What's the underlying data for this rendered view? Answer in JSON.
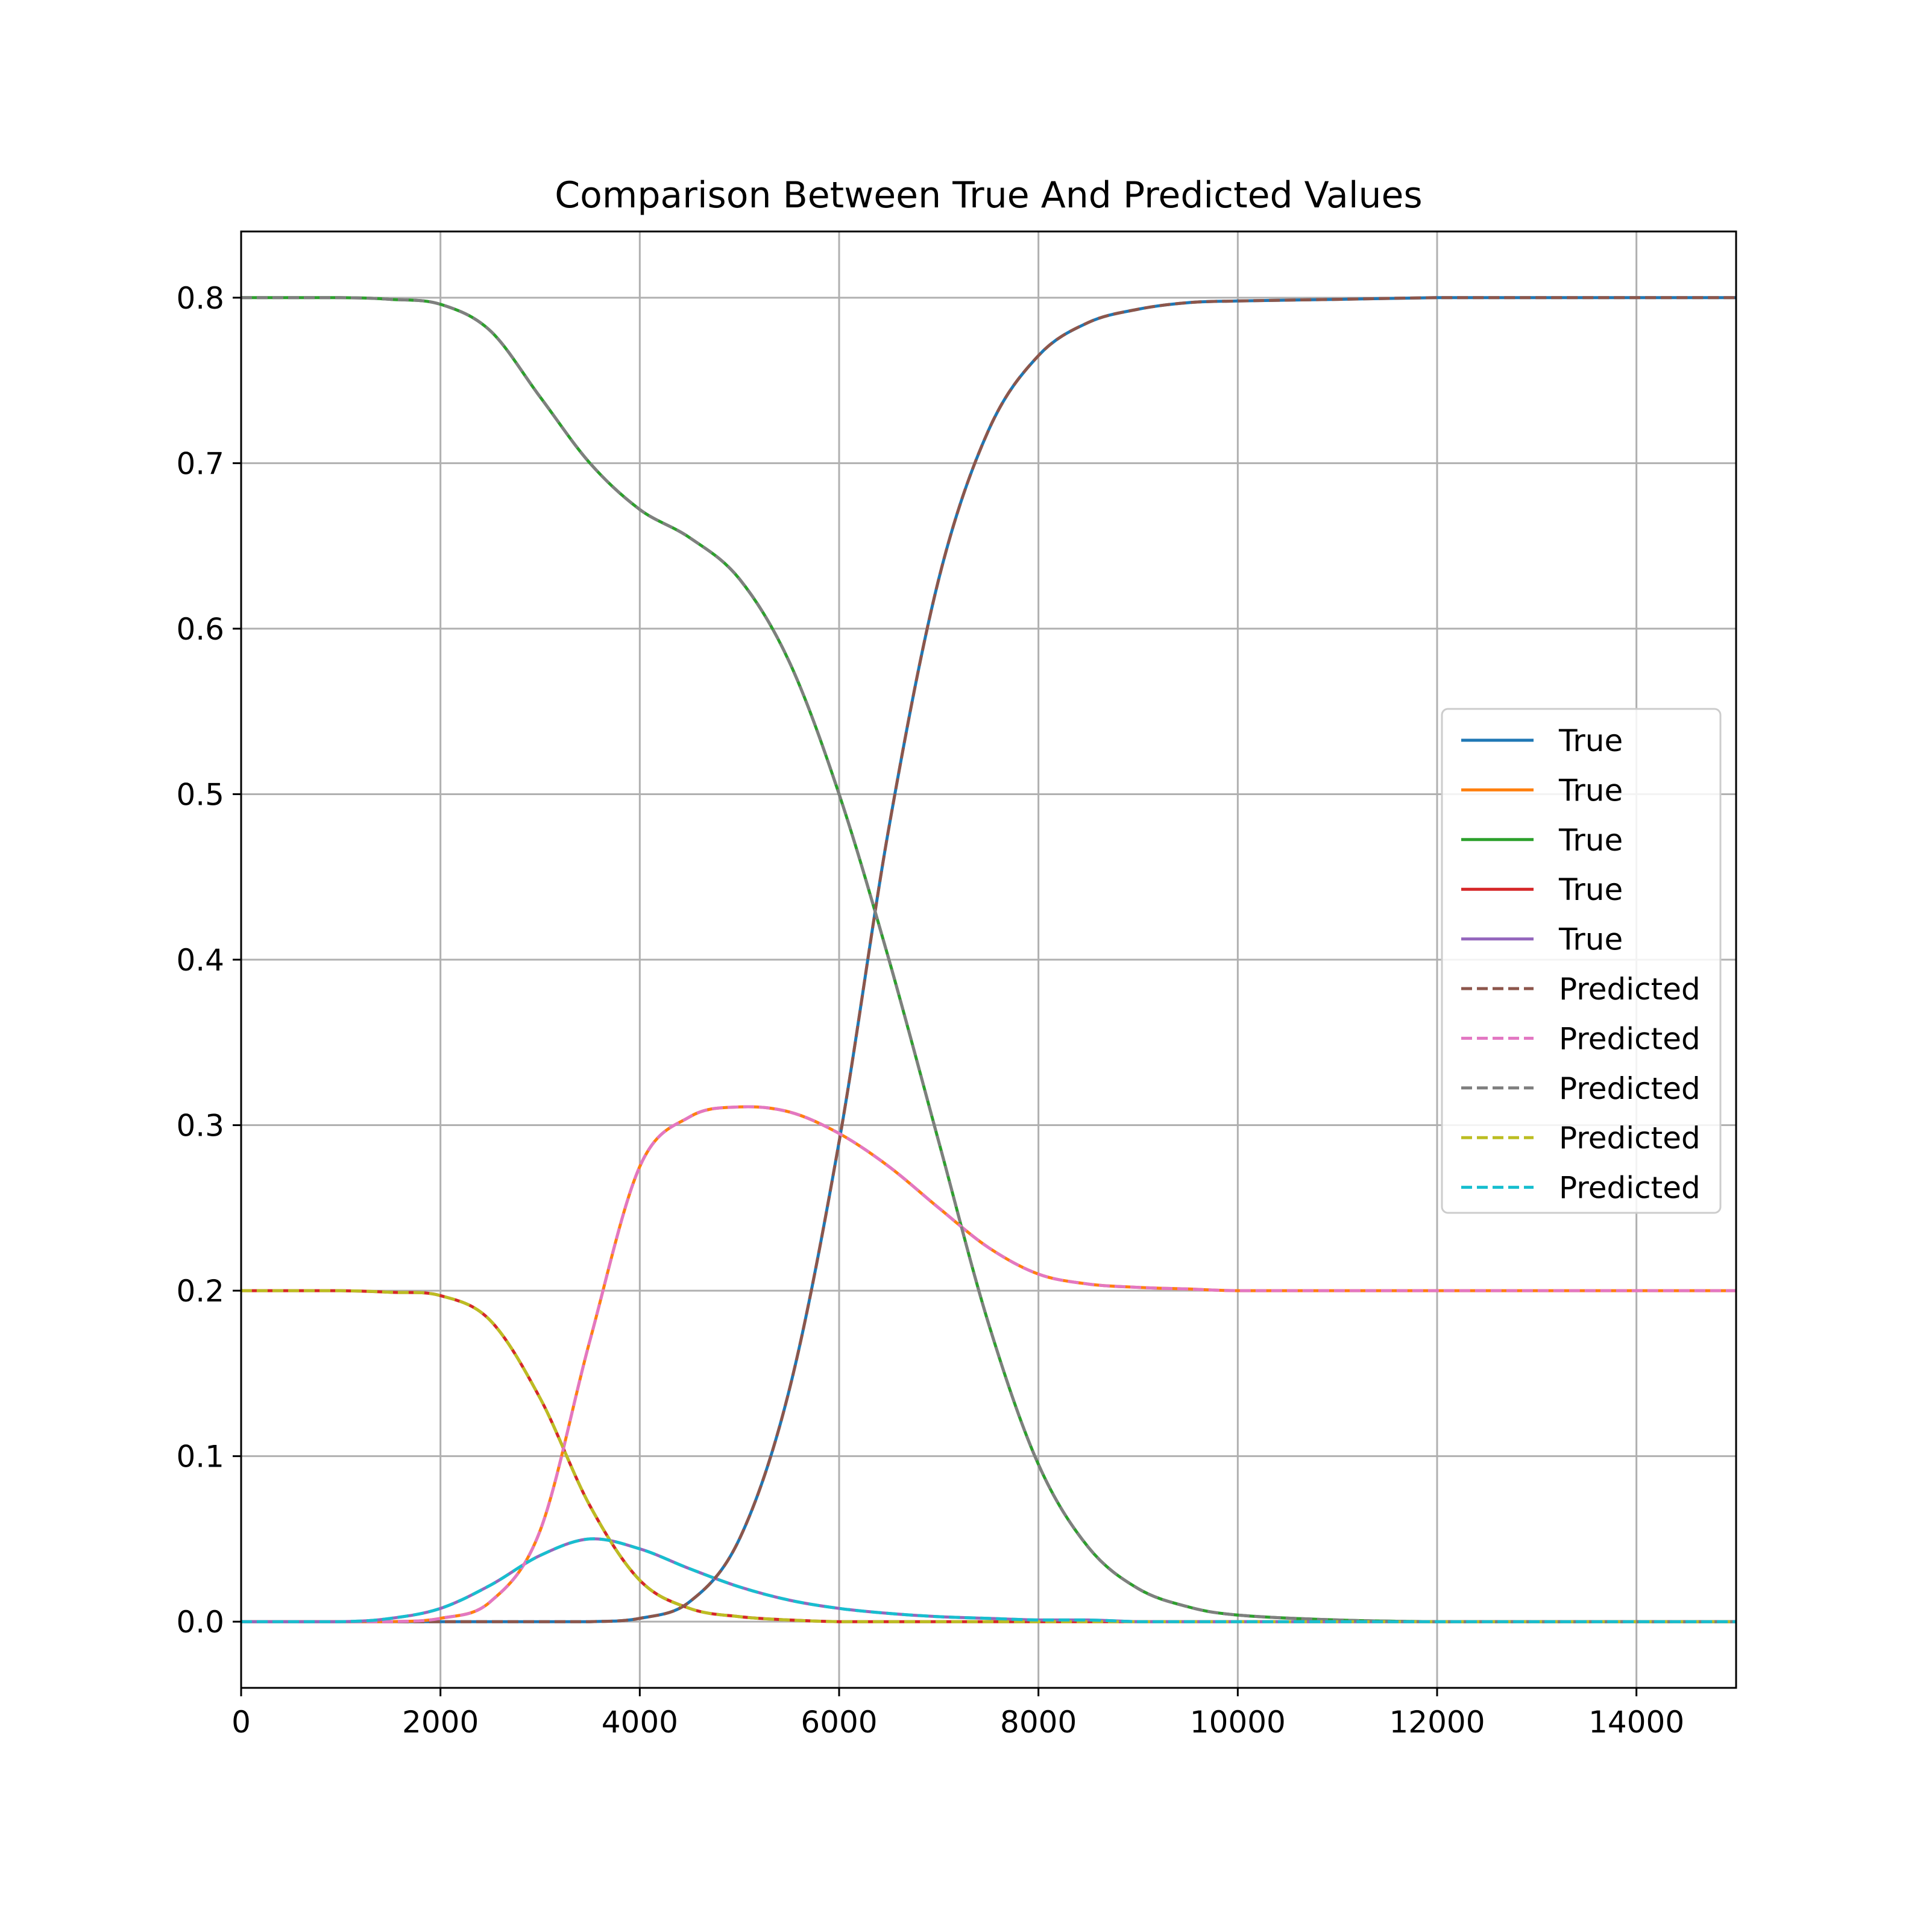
{
  "chart_data": {
    "type": "line",
    "title": "Comparison Between True And Predicted Values",
    "xlabel": "",
    "ylabel": "",
    "xlim": [
      0,
      15000
    ],
    "ylim": [
      -0.04,
      0.84
    ],
    "grid": true,
    "legend_position": "center-right",
    "x_ticks": [
      0,
      2000,
      4000,
      6000,
      8000,
      10000,
      12000,
      14000
    ],
    "x_tick_labels": [
      "0",
      "2000",
      "4000",
      "6000",
      "8000",
      "10000",
      "12000",
      "14000"
    ],
    "y_ticks": [
      0.0,
      0.1,
      0.2,
      0.3,
      0.4,
      0.5,
      0.6,
      0.7,
      0.8
    ],
    "y_tick_labels": [
      "0.0",
      "0.1",
      "0.2",
      "0.3",
      "0.4",
      "0.5",
      "0.6",
      "0.7",
      "0.8"
    ],
    "x": [
      0,
      1000,
      1500,
      2000,
      2500,
      3000,
      3500,
      4000,
      4500,
      5000,
      5500,
      6000,
      6500,
      7000,
      7500,
      8000,
      8500,
      9000,
      9500,
      10000,
      11000,
      12000,
      13000,
      14000,
      15000
    ],
    "series": [
      {
        "name": "True",
        "style": "solid",
        "color": "#1f77b4",
        "values": [
          0.0,
          0.0,
          0.0,
          0.0,
          0.0,
          0.0,
          0.0,
          0.002,
          0.012,
          0.05,
          0.14,
          0.29,
          0.48,
          0.63,
          0.72,
          0.765,
          0.785,
          0.793,
          0.797,
          0.798,
          0.799,
          0.8,
          0.8,
          0.8,
          0.8
        ]
      },
      {
        "name": "True",
        "style": "solid",
        "color": "#ff7f0e",
        "values": [
          0.0,
          0.0,
          0.0,
          0.002,
          0.012,
          0.055,
          0.17,
          0.275,
          0.305,
          0.311,
          0.308,
          0.295,
          0.275,
          0.25,
          0.226,
          0.21,
          0.204,
          0.202,
          0.201,
          0.2,
          0.2,
          0.2,
          0.2,
          0.2,
          0.2
        ]
      },
      {
        "name": "True",
        "style": "solid",
        "color": "#2ca02c",
        "values": [
          0.8,
          0.8,
          0.799,
          0.796,
          0.78,
          0.74,
          0.7,
          0.672,
          0.655,
          0.63,
          0.58,
          0.5,
          0.4,
          0.29,
          0.18,
          0.095,
          0.045,
          0.02,
          0.009,
          0.004,
          0.001,
          0.0,
          0.0,
          0.0,
          0.0
        ]
      },
      {
        "name": "True",
        "style": "solid",
        "color": "#d62728",
        "values": [
          0.2,
          0.2,
          0.199,
          0.197,
          0.182,
          0.135,
          0.07,
          0.025,
          0.008,
          0.003,
          0.001,
          0.0,
          0.0,
          0.0,
          0.0,
          0.0,
          0.0,
          0.0,
          0.0,
          0.0,
          0.0,
          0.0,
          0.0,
          0.0,
          0.0
        ]
      },
      {
        "name": "True",
        "style": "solid",
        "color": "#9467bd",
        "values": [
          0.0,
          0.0,
          0.002,
          0.008,
          0.022,
          0.04,
          0.05,
          0.044,
          0.032,
          0.021,
          0.013,
          0.008,
          0.005,
          0.003,
          0.002,
          0.001,
          0.001,
          0.0,
          0.0,
          0.0,
          0.0,
          0.0,
          0.0,
          0.0,
          0.0
        ]
      },
      {
        "name": "Predicted",
        "style": "dashed",
        "color": "#8c564b",
        "values": [
          0.0,
          0.0,
          0.0,
          0.0,
          0.0,
          0.0,
          0.0,
          0.002,
          0.012,
          0.05,
          0.14,
          0.29,
          0.48,
          0.63,
          0.72,
          0.765,
          0.785,
          0.793,
          0.797,
          0.798,
          0.799,
          0.8,
          0.8,
          0.8,
          0.8
        ]
      },
      {
        "name": "Predicted",
        "style": "dashed",
        "color": "#e377c2",
        "values": [
          0.0,
          0.0,
          0.0,
          0.002,
          0.012,
          0.055,
          0.17,
          0.275,
          0.305,
          0.311,
          0.308,
          0.295,
          0.275,
          0.25,
          0.226,
          0.21,
          0.204,
          0.202,
          0.201,
          0.2,
          0.2,
          0.2,
          0.2,
          0.2,
          0.2
        ]
      },
      {
        "name": "Predicted",
        "style": "dashed",
        "color": "#7f7f7f",
        "values": [
          0.8,
          0.8,
          0.799,
          0.796,
          0.78,
          0.74,
          0.7,
          0.672,
          0.655,
          0.63,
          0.58,
          0.5,
          0.4,
          0.29,
          0.18,
          0.095,
          0.045,
          0.02,
          0.009,
          0.004,
          0.001,
          0.0,
          0.0,
          0.0,
          0.0
        ]
      },
      {
        "name": "Predicted",
        "style": "dashed",
        "color": "#bcbd22",
        "values": [
          0.2,
          0.2,
          0.199,
          0.197,
          0.182,
          0.135,
          0.07,
          0.025,
          0.008,
          0.003,
          0.001,
          0.0,
          0.0,
          0.0,
          0.0,
          0.0,
          0.0,
          0.0,
          0.0,
          0.0,
          0.0,
          0.0,
          0.0,
          0.0,
          0.0
        ]
      },
      {
        "name": "Predicted",
        "style": "dashed",
        "color": "#17becf",
        "values": [
          0.0,
          0.0,
          0.002,
          0.008,
          0.022,
          0.04,
          0.05,
          0.044,
          0.032,
          0.021,
          0.013,
          0.008,
          0.005,
          0.003,
          0.002,
          0.001,
          0.001,
          0.0,
          0.0,
          0.0,
          0.0,
          0.0,
          0.0,
          0.0,
          0.0
        ]
      }
    ]
  }
}
